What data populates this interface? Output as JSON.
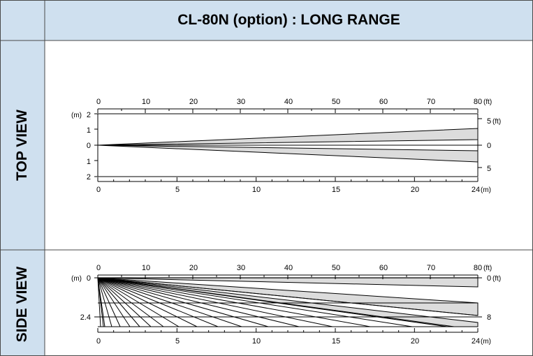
{
  "header": {
    "title": "CL-80N (option) : LONG RANGE"
  },
  "top_view": {
    "label": "TOP VIEW",
    "ft_ticks": [
      "0",
      "10",
      "20",
      "30",
      "40",
      "50",
      "60",
      "70",
      "80"
    ],
    "ft_unit": "(ft)",
    "m_ticks": [
      "0",
      "5",
      "10",
      "15",
      "20",
      "24"
    ],
    "m_unit": "(m)",
    "left_ticks": [
      "2",
      "1",
      "0",
      "1",
      "2"
    ],
    "left_unit": "(m)",
    "right_ticks": [
      "5",
      "0",
      "5"
    ],
    "right_unit": "(ft)"
  },
  "side_view": {
    "label": "SIDE VIEW",
    "ft_ticks": [
      "0",
      "10",
      "20",
      "30",
      "40",
      "50",
      "60",
      "70",
      "80"
    ],
    "ft_unit": "(ft)",
    "m_ticks": [
      "0",
      "5",
      "10",
      "15",
      "20",
      "24"
    ],
    "m_unit": "(m)",
    "left_ticks": [
      "0",
      "2.4"
    ],
    "left_unit": "(m)",
    "right_ticks": [
      "0",
      "8"
    ],
    "right_unit": "(ft)"
  },
  "colors": {
    "header_bg": "#cfe0ef",
    "zone_fill": "#dcdcdc",
    "line": "#000000",
    "border": "#4a4a4a"
  }
}
